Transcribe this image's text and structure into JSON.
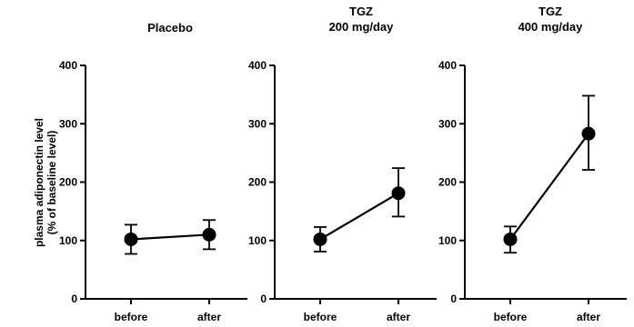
{
  "chart_data": {
    "type": "line",
    "ylabel_line1": "plasma adiponectin level",
    "ylabel_line2": "(% of baseline level)",
    "ylim": [
      0,
      400
    ],
    "yticks": [
      "0",
      "100",
      "200",
      "300",
      "400"
    ],
    "categories": [
      "before",
      "after"
    ],
    "panels": [
      {
        "title_lines": [
          "Placebo"
        ],
        "series": [
          {
            "values": [
              102,
              110
            ],
            "err_low": [
              77,
              85
            ],
            "err_high": [
              127,
              135
            ]
          }
        ]
      },
      {
        "title_lines": [
          "TGZ",
          "200 mg/day"
        ],
        "series": [
          {
            "values": [
              102,
              181
            ],
            "err_low": [
              81,
              141
            ],
            "err_high": [
              123,
              224
            ]
          }
        ]
      },
      {
        "title_lines": [
          "TGZ",
          "400 mg/day"
        ],
        "series": [
          {
            "values": [
              102,
              283
            ],
            "err_low": [
              79,
              221
            ],
            "err_high": [
              124,
              348
            ]
          }
        ]
      }
    ]
  }
}
